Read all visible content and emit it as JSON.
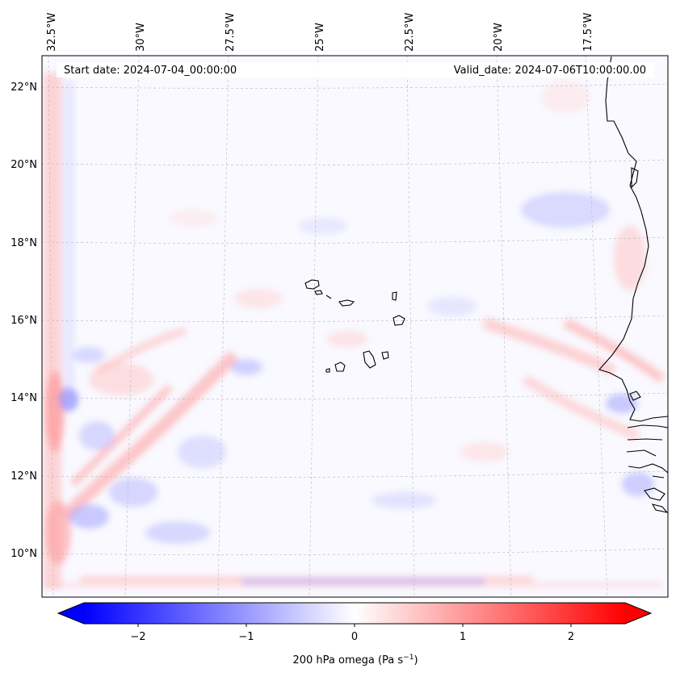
{
  "map": {
    "start_date": "Start date: 2024-07-04_00:00:00",
    "valid_date": "Valid_date: 2024-07-06T10:00:00.00",
    "lon_labels": [
      "32.5°W",
      "30°W",
      "27.5°W",
      "25°W",
      "22.5°W",
      "20°W",
      "17.5°W"
    ],
    "lat_labels": [
      "22°N",
      "20°N",
      "18°N",
      "16°N",
      "14°N",
      "12°N",
      "10°N"
    ],
    "field": "200 hPa omega",
    "colors": {
      "negative": "#0000ff",
      "zero": "#ffffff",
      "positive": "#ff0000",
      "coastline": "#000000",
      "gridline": "#b0b0b0"
    }
  },
  "colorbar": {
    "ticks": [
      "−2",
      "−1",
      "0",
      "1",
      "2"
    ],
    "range": [
      -2.6,
      2.6
    ],
    "label_main": "200 hPa omega (Pa s",
    "label_sup": "−1",
    "label_end": ")"
  }
}
